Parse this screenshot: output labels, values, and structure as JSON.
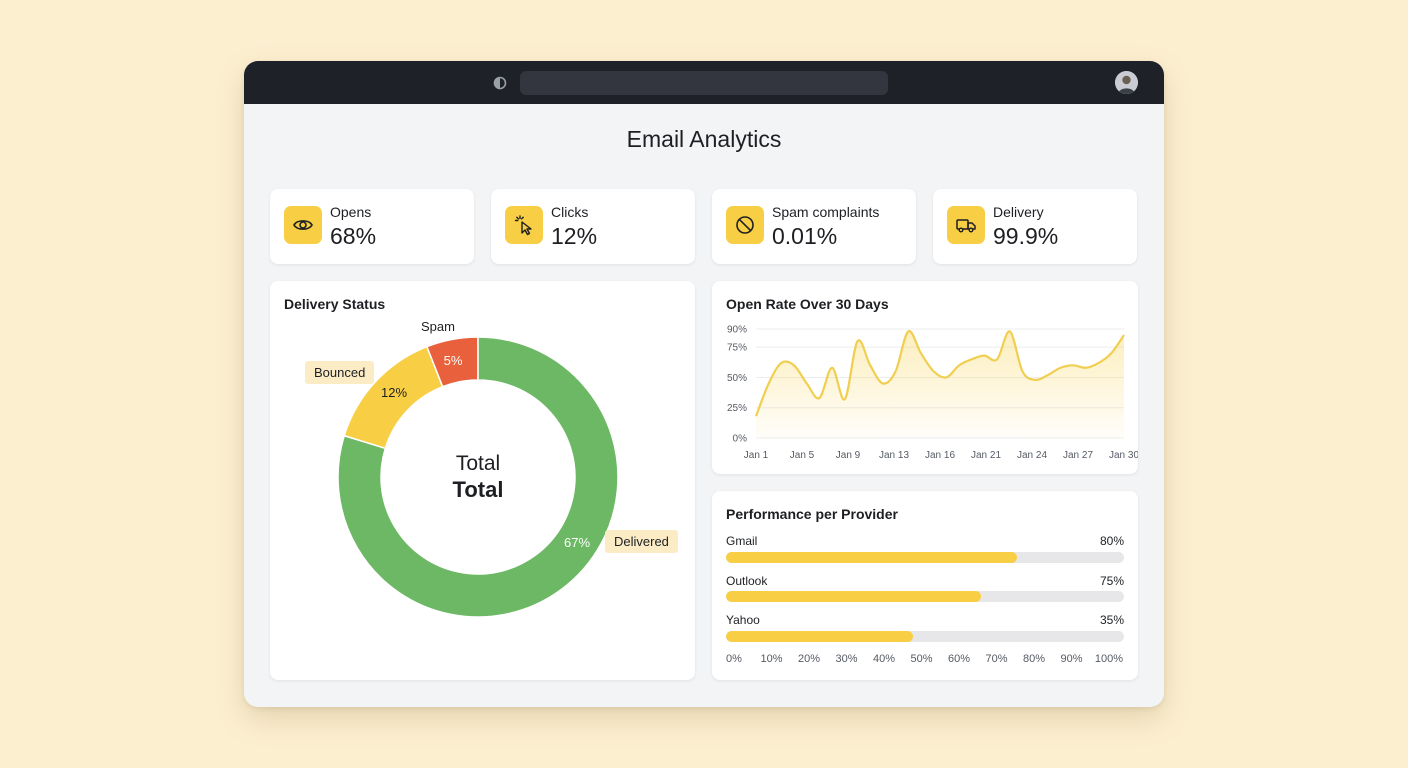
{
  "page": {
    "title": "Email Analytics"
  },
  "kpis": [
    {
      "label": "Opens",
      "value": "68%",
      "icon": "eye-icon"
    },
    {
      "label": "Clicks",
      "value": "12%",
      "icon": "cursor-click-icon"
    },
    {
      "label": "Spam complaints",
      "value": "0.01%",
      "icon": "ban-icon"
    },
    {
      "label": "Delivery",
      "value": "99.9%",
      "icon": "truck-icon"
    }
  ],
  "colors": {
    "accent": "#f8cf44",
    "delivered": "#6cb865",
    "bounced": "#f8cf44",
    "spam": "#e8603c",
    "line": "#f0cf50"
  },
  "delivery_status": {
    "title": "Delivery Status",
    "center_line1": "Total",
    "center_line2": "Total",
    "segments": [
      {
        "name": "Delivered",
        "pct_label": "67%"
      },
      {
        "name": "Bounced",
        "pct_label": "12%"
      },
      {
        "name": "Spam",
        "pct_label": "5%"
      }
    ]
  },
  "open_rate": {
    "title": "Open Rate Over 30 Days"
  },
  "providers": {
    "title": "Performance per Provider",
    "items": [
      {
        "name": "Gmail",
        "value_label": "80%"
      },
      {
        "name": "Outlook",
        "value_label": "75%"
      },
      {
        "name": "Yahoo",
        "value_label": "35%"
      }
    ],
    "axis_ticks": [
      "0%",
      "10%",
      "20%",
      "30%",
      "40%",
      "50%",
      "60%",
      "70%",
      "80%",
      "90%",
      "100%"
    ]
  },
  "chart_data": [
    {
      "type": "pie",
      "title": "Delivery Status",
      "categories": [
        "Delivered",
        "Bounced",
        "Spam"
      ],
      "values": [
        67,
        12,
        5
      ],
      "colors": [
        "#6cb865",
        "#f8cf44",
        "#e8603c"
      ]
    },
    {
      "type": "area",
      "title": "Open Rate Over 30 Days",
      "xlabel": "",
      "ylabel": "",
      "x_ticks": [
        "Jan 1",
        "Jan 5",
        "Jan 9",
        "Jan 13",
        "Jan 16",
        "Jan 21",
        "Jan 24",
        "Jan 27",
        "Jan 30"
      ],
      "y_ticks": [
        "0%",
        "25%",
        "50%",
        "75%",
        "90%"
      ],
      "ylim": [
        0,
        100
      ],
      "grid": true,
      "x": [
        1,
        2,
        3,
        4,
        5,
        6,
        7,
        8,
        9,
        10,
        11,
        12,
        13,
        14,
        15,
        16,
        17,
        18,
        19,
        20,
        21,
        22,
        23,
        24,
        25,
        26,
        27,
        28,
        29,
        30
      ],
      "series": [
        {
          "values": [
            18,
            45,
            62,
            60,
            45,
            33,
            58,
            32,
            80,
            60,
            45,
            55,
            88,
            70,
            55,
            50,
            60,
            65,
            68,
            65,
            88,
            55,
            48,
            52,
            58,
            60,
            58,
            62,
            70,
            85
          ]
        }
      ]
    },
    {
      "type": "bar",
      "orientation": "horizontal",
      "title": "Performance per Provider",
      "categories": [
        "Gmail",
        "Outlook",
        "Yahoo"
      ],
      "values": [
        80,
        75,
        35
      ],
      "bar_fill_fraction": [
        0.73,
        0.64,
        0.47
      ],
      "xlim": [
        0,
        100
      ]
    }
  ]
}
